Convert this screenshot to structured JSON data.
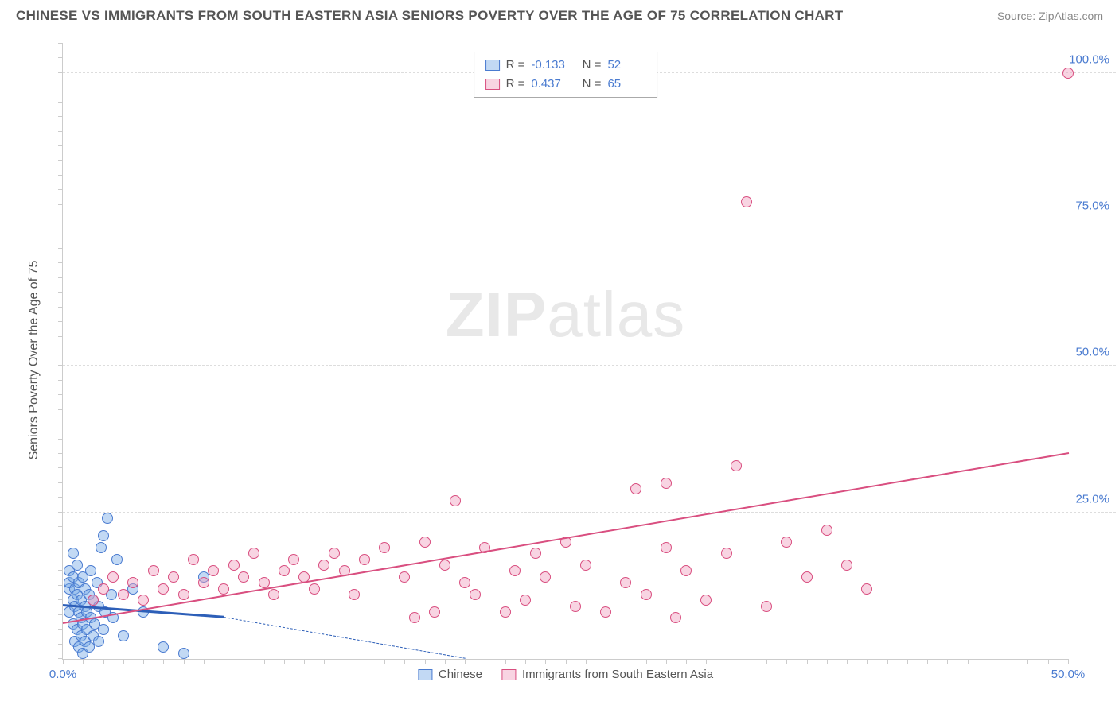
{
  "header": {
    "title": "CHINESE VS IMMIGRANTS FROM SOUTH EASTERN ASIA SENIORS POVERTY OVER THE AGE OF 75 CORRELATION CHART",
    "source": "Source: ZipAtlas.com"
  },
  "chart": {
    "type": "scatter",
    "ylabel": "Seniors Poverty Over the Age of 75",
    "watermark_prefix": "ZIP",
    "watermark_suffix": "atlas",
    "xlim": [
      0,
      50
    ],
    "ylim": [
      0,
      105
    ],
    "x_ticks_minor_step": 1,
    "y_ticks_minor_step": 2.5,
    "x_tick_labels": [
      {
        "pos": 0,
        "label": "0.0%"
      },
      {
        "pos": 50,
        "label": "50.0%"
      }
    ],
    "y_tick_labels": [
      {
        "pos": 25,
        "label": "25.0%"
      },
      {
        "pos": 50,
        "label": "50.0%"
      },
      {
        "pos": 75,
        "label": "75.0%"
      },
      {
        "pos": 100,
        "label": "100.0%"
      }
    ],
    "y_gridlines": [
      25,
      50,
      75,
      100
    ],
    "background_color": "#ffffff",
    "grid_color": "#dddddd",
    "axis_color": "#cccccc",
    "tick_label_color": "#4a7bd0",
    "label_color": "#555555",
    "series": [
      {
        "name": "Chinese",
        "label": "Chinese",
        "R_label": "R =",
        "R_value": "-0.133",
        "N_label": "N =",
        "N_value": "52",
        "point_fill": "rgba(120,170,230,0.45)",
        "point_stroke": "#4a7bd0",
        "line_color": "#2d5fb8",
        "line_dash_color": "#2d5fb8",
        "line_width": 2.5,
        "trend": {
          "x1": 0,
          "y1": 9,
          "x2": 8,
          "y2": 7,
          "extend_x": 20,
          "extend_y": 0
        },
        "points": [
          [
            0.3,
            8
          ],
          [
            0.3,
            12
          ],
          [
            0.3,
            15
          ],
          [
            0.3,
            13
          ],
          [
            0.5,
            6
          ],
          [
            0.5,
            10
          ],
          [
            0.5,
            14
          ],
          [
            0.5,
            18
          ],
          [
            0.6,
            3
          ],
          [
            0.6,
            9
          ],
          [
            0.6,
            12
          ],
          [
            0.7,
            5
          ],
          [
            0.7,
            11
          ],
          [
            0.7,
            16
          ],
          [
            0.8,
            2
          ],
          [
            0.8,
            8
          ],
          [
            0.8,
            13
          ],
          [
            0.9,
            4
          ],
          [
            0.9,
            7
          ],
          [
            0.9,
            10
          ],
          [
            1.0,
            1
          ],
          [
            1.0,
            6
          ],
          [
            1.0,
            14
          ],
          [
            1.1,
            3
          ],
          [
            1.1,
            9
          ],
          [
            1.1,
            12
          ],
          [
            1.2,
            5
          ],
          [
            1.2,
            8
          ],
          [
            1.3,
            2
          ],
          [
            1.3,
            11
          ],
          [
            1.4,
            7
          ],
          [
            1.4,
            15
          ],
          [
            1.5,
            4
          ],
          [
            1.5,
            10
          ],
          [
            1.6,
            6
          ],
          [
            1.7,
            13
          ],
          [
            1.8,
            3
          ],
          [
            1.8,
            9
          ],
          [
            1.9,
            19
          ],
          [
            2.0,
            5
          ],
          [
            2.0,
            21
          ],
          [
            2.1,
            8
          ],
          [
            2.2,
            24
          ],
          [
            2.4,
            11
          ],
          [
            2.5,
            7
          ],
          [
            2.7,
            17
          ],
          [
            3.0,
            4
          ],
          [
            3.5,
            12
          ],
          [
            4.0,
            8
          ],
          [
            5.0,
            2
          ],
          [
            6.0,
            1
          ],
          [
            7.0,
            14
          ]
        ]
      },
      {
        "name": "Immigrants from South Eastern Asia",
        "label": "Immigrants from South Eastern Asia",
        "R_label": "R =",
        "R_value": "0.437",
        "N_label": "N =",
        "N_value": "65",
        "point_fill": "rgba(240,160,190,0.45)",
        "point_stroke": "#d94f80",
        "line_color": "#d94f80",
        "line_width": 2,
        "trend": {
          "x1": 0,
          "y1": 6,
          "x2": 50,
          "y2": 35
        },
        "points": [
          [
            1.5,
            10
          ],
          [
            2,
            12
          ],
          [
            2.5,
            14
          ],
          [
            3,
            11
          ],
          [
            3.5,
            13
          ],
          [
            4,
            10
          ],
          [
            4.5,
            15
          ],
          [
            5,
            12
          ],
          [
            5.5,
            14
          ],
          [
            6,
            11
          ],
          [
            6.5,
            17
          ],
          [
            7,
            13
          ],
          [
            7.5,
            15
          ],
          [
            8,
            12
          ],
          [
            8.5,
            16
          ],
          [
            9,
            14
          ],
          [
            9.5,
            18
          ],
          [
            10,
            13
          ],
          [
            10.5,
            11
          ],
          [
            11,
            15
          ],
          [
            11.5,
            17
          ],
          [
            12,
            14
          ],
          [
            12.5,
            12
          ],
          [
            13,
            16
          ],
          [
            13.5,
            18
          ],
          [
            14,
            15
          ],
          [
            14.5,
            11
          ],
          [
            15,
            17
          ],
          [
            16,
            19
          ],
          [
            17,
            14
          ],
          [
            17.5,
            7
          ],
          [
            18,
            20
          ],
          [
            18.5,
            8
          ],
          [
            19,
            16
          ],
          [
            19.5,
            27
          ],
          [
            20,
            13
          ],
          [
            20.5,
            11
          ],
          [
            21,
            19
          ],
          [
            22,
            8
          ],
          [
            22.5,
            15
          ],
          [
            23,
            10
          ],
          [
            23.5,
            18
          ],
          [
            24,
            14
          ],
          [
            25,
            20
          ],
          [
            25.5,
            9
          ],
          [
            26,
            16
          ],
          [
            27,
            8
          ],
          [
            28,
            13
          ],
          [
            28.5,
            29
          ],
          [
            29,
            11
          ],
          [
            30,
            19
          ],
          [
            30,
            30
          ],
          [
            30.5,
            7
          ],
          [
            31,
            15
          ],
          [
            32,
            10
          ],
          [
            33,
            18
          ],
          [
            33.5,
            33
          ],
          [
            34,
            78
          ],
          [
            35,
            9
          ],
          [
            36,
            20
          ],
          [
            37,
            14
          ],
          [
            38,
            22
          ],
          [
            39,
            16
          ],
          [
            40,
            12
          ],
          [
            50,
            100
          ]
        ]
      }
    ]
  }
}
